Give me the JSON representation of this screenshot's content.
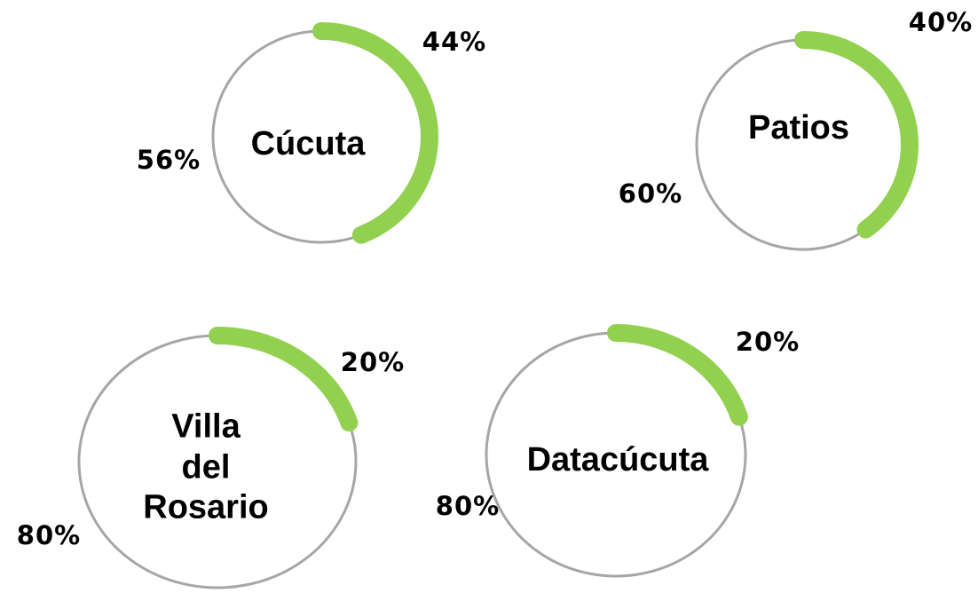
{
  "chart_data": [
    {
      "type": "donut",
      "title": "Cúcuta",
      "values": [
        44,
        56
      ],
      "value_labels": [
        "44%",
        "56%"
      ],
      "colors": [
        "#92d050",
        "#a6a6a6"
      ]
    },
    {
      "type": "donut",
      "title": "Patios",
      "values": [
        40,
        60
      ],
      "value_labels": [
        "40%",
        "60%"
      ],
      "colors": [
        "#92d050",
        "#a6a6a6"
      ]
    },
    {
      "type": "donut",
      "title": "Villa del Rosario",
      "values": [
        20,
        80
      ],
      "value_labels": [
        "20%",
        "80%"
      ],
      "colors": [
        "#92d050",
        "#a6a6a6"
      ]
    },
    {
      "type": "donut",
      "title": "Datacúcuta",
      "values": [
        20,
        80
      ],
      "value_labels": [
        "20%",
        "80%"
      ],
      "colors": [
        "#92d050",
        "#a6a6a6"
      ]
    }
  ]
}
